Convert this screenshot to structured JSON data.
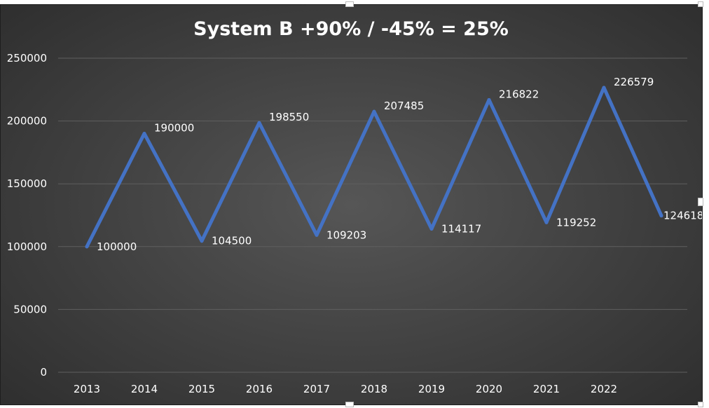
{
  "chart_data": {
    "type": "line",
    "title": "System B +90% / -45% = 25%",
    "categories": [
      "2013",
      "2014",
      "2015",
      "2016",
      "2017",
      "2018",
      "2019",
      "2020",
      "2021",
      "2022",
      ""
    ],
    "series": [
      {
        "values": [
          100000,
          190000,
          104500,
          198550,
          109203,
          207485,
          114117,
          216822,
          119252,
          226579,
          124618
        ],
        "data_labels": [
          "100000",
          "190000",
          "104500",
          "198550",
          "109203",
          "207485",
          "114117",
          "216822",
          "119252",
          "226579",
          "124618"
        ],
        "color": "#4472c4"
      }
    ],
    "yticks": [
      "0",
      "50000",
      "100000",
      "150000",
      "200000",
      "250000"
    ],
    "ylim": [
      0,
      250000
    ],
    "grid": true,
    "legend": "none",
    "colors": {
      "background": "#404040",
      "text": "#ffffff",
      "grid": "#5f5f5f",
      "line": "#4472c4"
    }
  }
}
